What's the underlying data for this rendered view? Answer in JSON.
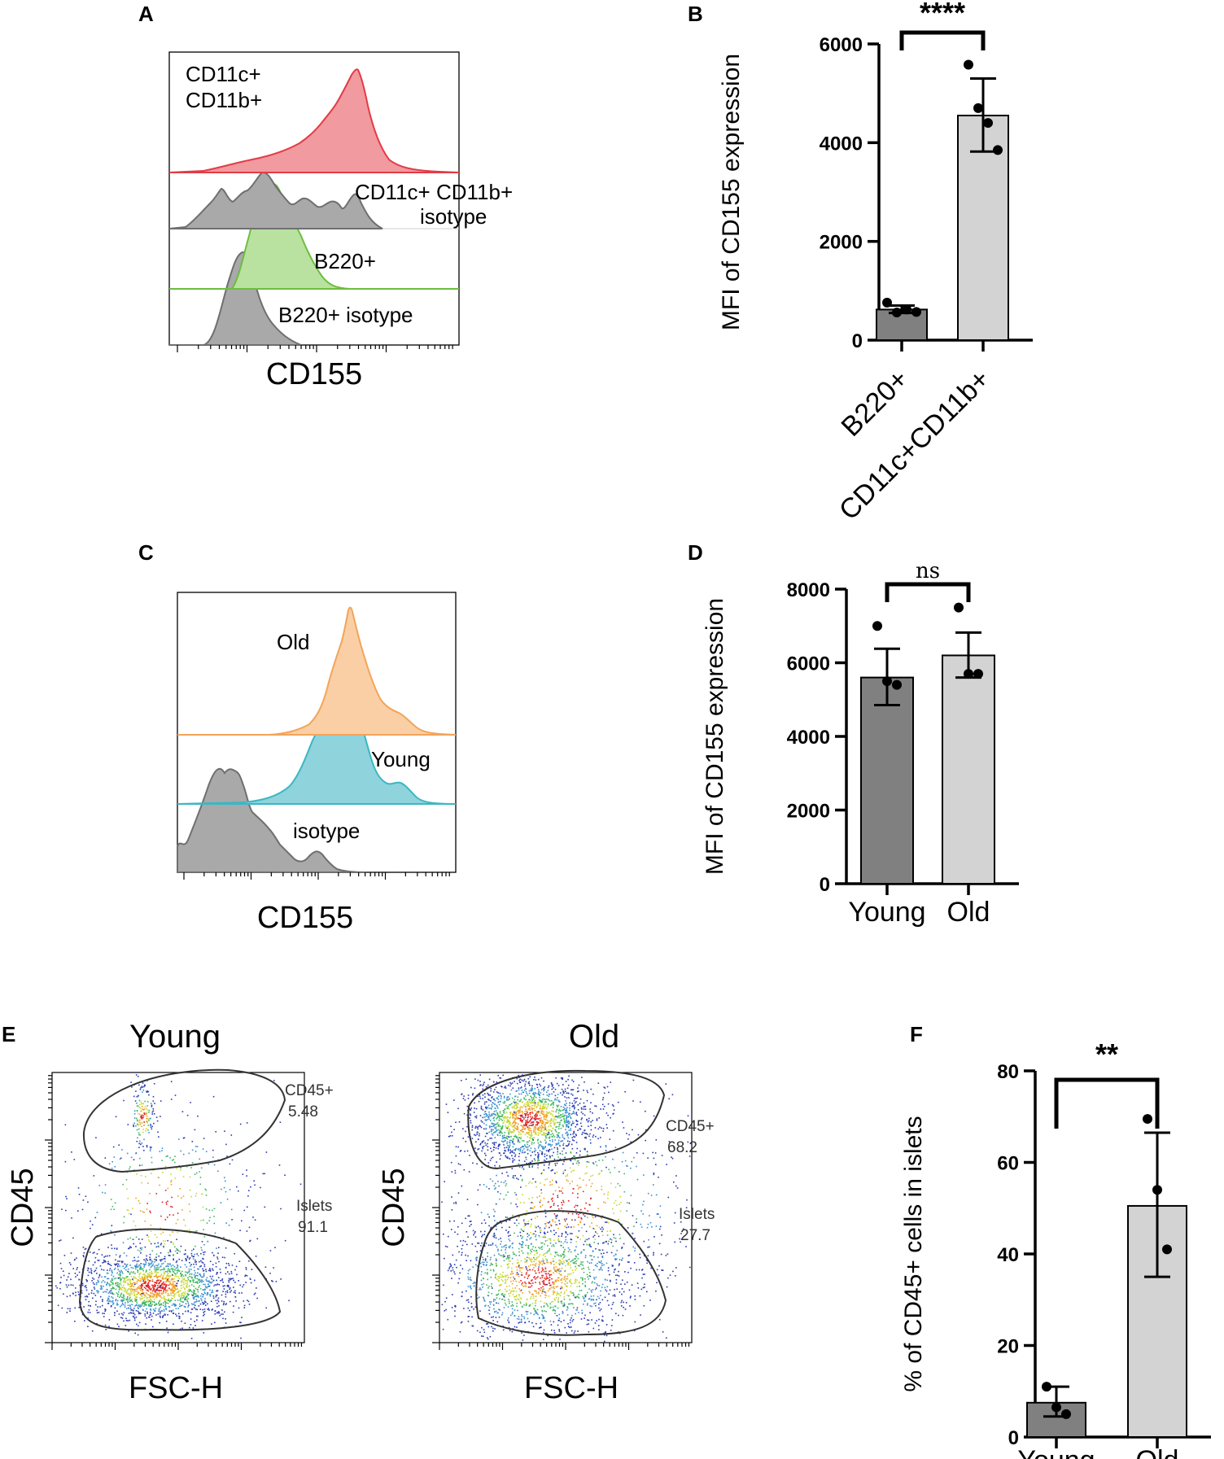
{
  "panels": {
    "A": {
      "letter": "A",
      "xlabel": "CD155",
      "tracks": [
        {
          "name": "cd11c-cd11b",
          "label_lines": [
            "CD11c+",
            "CD11b+"
          ],
          "fill": "#f19a9f",
          "stroke": "#e23c46"
        },
        {
          "name": "cd11c-cd11b-isotype",
          "label_lines": [
            "CD11c+ CD11b+",
            "isotype"
          ],
          "fill": "#a9a9a9",
          "stroke": "#6f6f6f"
        },
        {
          "name": "b220",
          "label_lines": [
            "B220+"
          ],
          "fill": "#b9e2a0",
          "stroke": "#6dbd3f"
        },
        {
          "name": "b220-isotype",
          "label_lines": [
            "B220+ isotype"
          ],
          "fill": "#a9a9a9",
          "stroke": "#6f6f6f"
        }
      ]
    },
    "C": {
      "letter": "C",
      "xlabel": "CD155",
      "tracks": [
        {
          "name": "old",
          "label_lines": [
            "Old"
          ],
          "fill": "#fbcfa6",
          "stroke": "#f2a45a"
        },
        {
          "name": "young",
          "label_lines": [
            "Young"
          ],
          "fill": "#8fd3dc",
          "stroke": "#3bb7c3"
        },
        {
          "name": "isotype",
          "label_lines": [
            "isotype"
          ],
          "fill": "#a9a9a9",
          "stroke": "#6f6f6f"
        }
      ]
    },
    "E": {
      "letter": "E",
      "plots": [
        {
          "name": "young",
          "title": "Young",
          "xlabel": "FSC-H",
          "ylabel": "CD45",
          "gates": [
            {
              "name": "cd45-gate",
              "label": "CD45+",
              "value": "5.48"
            },
            {
              "name": "islets-gate",
              "label": "Islets",
              "value": "91.1"
            }
          ]
        },
        {
          "name": "old",
          "title": "Old",
          "xlabel": "FSC-H",
          "ylabel": "CD45",
          "gates": [
            {
              "name": "cd45-gate",
              "label": "CD45+",
              "value": "68.2"
            },
            {
              "name": "islets-gate",
              "label": "Islets",
              "value": "27.7"
            }
          ]
        }
      ]
    }
  },
  "chart_data": [
    {
      "panel": "B",
      "type": "bar",
      "categories": [
        "B220+",
        "CD11c+CD11b+"
      ],
      "values": [
        620,
        4550
      ],
      "error": [
        [
          550,
          700
        ],
        [
          3820,
          5300
        ]
      ],
      "points": [
        [
          760,
          560,
          620,
          570
        ],
        [
          5580,
          4700,
          4400,
          3850
        ]
      ],
      "bar_colors": [
        "#808080",
        "#d3d3d3"
      ],
      "ylabel": "MFI of CD155 expression",
      "ylim": [
        0,
        6000
      ],
      "yticks": [
        0,
        2000,
        4000,
        6000
      ],
      "significance": "****"
    },
    {
      "panel": "D",
      "type": "bar",
      "categories": [
        "Young",
        "Old"
      ],
      "values": [
        5600,
        6200
      ],
      "error": [
        [
          4850,
          6380
        ],
        [
          5600,
          6820
        ]
      ],
      "points": [
        [
          7000,
          5500,
          5400
        ],
        [
          7500,
          5700,
          5700
        ]
      ],
      "bar_colors": [
        "#808080",
        "#d3d3d3"
      ],
      "ylabel": "MFI of CD155 expression",
      "ylim": [
        0,
        8000
      ],
      "yticks": [
        0,
        2000,
        4000,
        6000,
        8000
      ],
      "significance": "ns"
    },
    {
      "panel": "F",
      "type": "bar",
      "categories": [
        "Young",
        "Old"
      ],
      "values": [
        7.5,
        50.5
      ],
      "error": [
        [
          4.5,
          11
        ],
        [
          35,
          66.5
        ]
      ],
      "points": [
        [
          11,
          6.5,
          5
        ],
        [
          69.5,
          54,
          41
        ]
      ],
      "bar_colors": [
        "#808080",
        "#d3d3d3"
      ],
      "ylabel": "% of CD45+ cells in islets",
      "ylim": [
        0,
        80
      ],
      "yticks": [
        0,
        20,
        40,
        60,
        80
      ],
      "significance": "**"
    }
  ]
}
